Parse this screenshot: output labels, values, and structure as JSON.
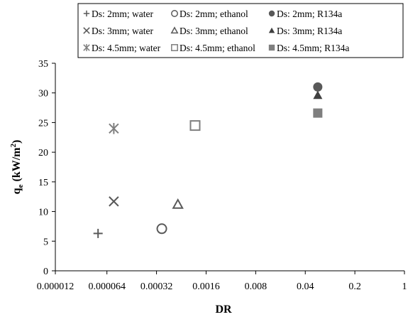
{
  "chart_data": {
    "type": "scatter",
    "xlabel": "DR",
    "ylabel": "q",
    "ylabel_sub": "e",
    "ylabel_unit_pre": " (kW/m",
    "ylabel_unit_sup": "2",
    "ylabel_unit_post": ")",
    "x_scale": "log",
    "x_ticks": [
      1.2e-05,
      6.4e-05,
      0.00032,
      0.0016,
      0.008,
      0.04,
      0.2,
      1
    ],
    "x_tick_labels": [
      "0.000012",
      "0.000064",
      "0.00032",
      "0.0016",
      "0.008",
      "0.04",
      "0.2",
      "1"
    ],
    "xlim": [
      1.2e-05,
      1
    ],
    "ylim": [
      0,
      35
    ],
    "y_ticks": [
      0,
      5,
      10,
      15,
      20,
      25,
      30,
      35
    ],
    "grid": false,
    "legend_position": "top",
    "series": [
      {
        "name": "Ds: 2mm; water",
        "marker": "plus",
        "color": "#595959",
        "x": [
          4.8e-05
        ],
        "y": [
          6.3
        ]
      },
      {
        "name": "Ds: 2mm; ethanol",
        "marker": "circle-open",
        "color": "#595959",
        "x": [
          0.00038
        ],
        "y": [
          7.1
        ]
      },
      {
        "name": "Ds: 2mm; R134a",
        "marker": "circle-filled",
        "color": "#595959",
        "x": [
          0.06
        ],
        "y": [
          31.0
        ]
      },
      {
        "name": "Ds: 3mm; water",
        "marker": "x",
        "color": "#595959",
        "x": [
          8e-05
        ],
        "y": [
          11.7
        ]
      },
      {
        "name": "Ds: 3mm; ethanol",
        "marker": "triangle-open",
        "color": "#595959",
        "x": [
          0.00064
        ],
        "y": [
          11.2
        ]
      },
      {
        "name": "Ds: 3mm; R134a",
        "marker": "triangle-filled",
        "color": "#404040",
        "x": [
          0.06
        ],
        "y": [
          29.6
        ]
      },
      {
        "name": "Ds: 4.5mm; water",
        "marker": "asterisk",
        "color": "#7f7f7f",
        "x": [
          8e-05
        ],
        "y": [
          24.0
        ]
      },
      {
        "name": "Ds: 4.5mm; ethanol",
        "marker": "square-open",
        "color": "#7f7f7f",
        "x": [
          0.00112
        ],
        "y": [
          24.5
        ]
      },
      {
        "name": "Ds: 4.5mm; R134a",
        "marker": "square-filled",
        "color": "#7f7f7f",
        "x": [
          0.06
        ],
        "y": [
          26.6
        ]
      }
    ]
  }
}
